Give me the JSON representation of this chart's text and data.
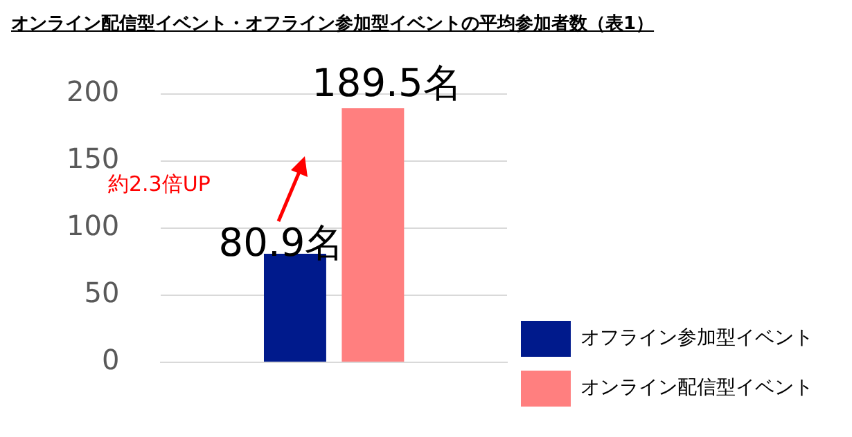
{
  "chart_data": {
    "type": "bar",
    "title": "オンライン配信型イベント・オフライン参加型イベントの平均参加者数（表1）",
    "categories": [
      null
    ],
    "series": [
      {
        "name": "オフライン参加型イベント",
        "color": "#001a8c",
        "values": [
          80.9
        ],
        "value_labels": [
          "80.9名"
        ]
      },
      {
        "name": "オンライン配信型イベント",
        "color": "#ff7f7f",
        "values": [
          189.5
        ],
        "value_labels": [
          "189.5名"
        ]
      }
    ],
    "annotations": [
      "約2.3倍UP"
    ],
    "ylim": [
      0,
      200
    ],
    "yticks": [
      0,
      50,
      100,
      150,
      200
    ],
    "grid": "y",
    "legend": "bottom right"
  }
}
